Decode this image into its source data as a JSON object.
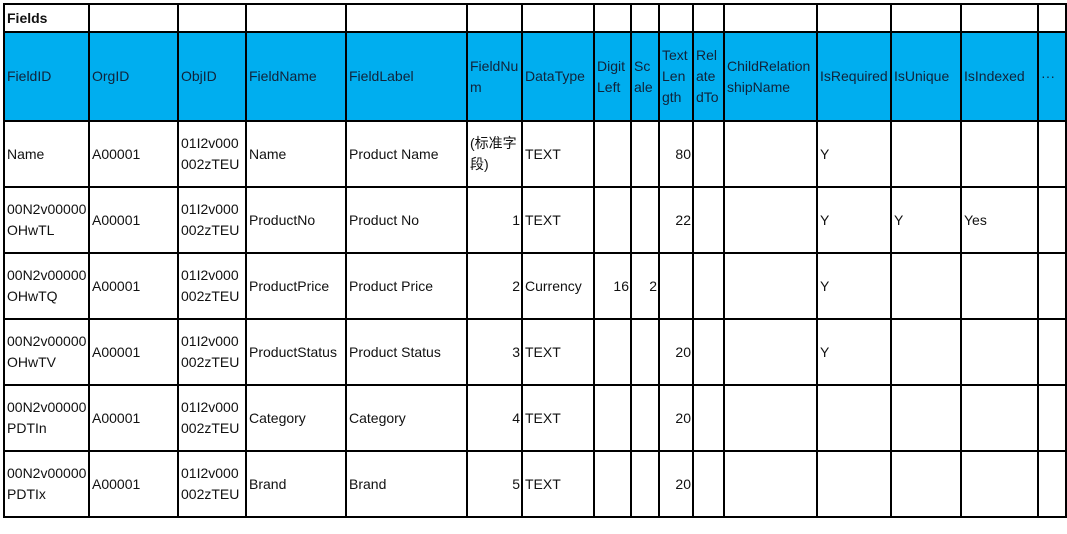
{
  "sheet": {
    "title": "Fields",
    "columns": [
      "FieldID",
      "OrgID",
      "ObjID",
      "FieldName",
      "FieldLabel",
      "FieldNum",
      "DataType",
      "DigitLeft",
      "Scale",
      "TextLength",
      "RelatedTo",
      "ChildRelationshipName",
      "IsRequired",
      "IsUnique",
      "IsIndexed",
      "···"
    ],
    "numeric_columns": [
      5,
      7,
      8,
      9
    ],
    "rows": [
      [
        "Name",
        "A00001",
        "01I2v000002zTEU",
        "Name",
        "Product Name",
        "(标准字段)",
        "TEXT",
        "",
        "",
        "80",
        "",
        "",
        "Y",
        "",
        "",
        ""
      ],
      [
        "00N2v00000OHwTL",
        "A00001",
        "01I2v000002zTEU",
        "ProductNo",
        "Product No",
        "1",
        "TEXT",
        "",
        "",
        "22",
        "",
        "",
        "Y",
        "Y",
        "Yes",
        ""
      ],
      [
        "00N2v00000OHwTQ",
        "A00001",
        "01I2v000002zTEU",
        "ProductPrice",
        "Product Price",
        "2",
        "Currency",
        "16",
        "2",
        "",
        "",
        "",
        "Y",
        "",
        "",
        ""
      ],
      [
        "00N2v00000OHwTV",
        "A00001",
        "01I2v000002zTEU",
        "ProductStatus",
        "Product Status",
        "3",
        "TEXT",
        "",
        "",
        "20",
        "",
        "",
        "Y",
        "",
        "",
        ""
      ],
      [
        "00N2v00000PDTIn",
        "A00001",
        "01I2v000002zTEU",
        "Category",
        "Category",
        "4",
        "TEXT",
        "",
        "",
        "20",
        "",
        "",
        "",
        "",
        "",
        ""
      ],
      [
        "00N2v00000PDTIx",
        "A00001",
        "01I2v000002zTEU",
        "Brand",
        "Brand",
        "5",
        "TEXT",
        "",
        "",
        "20",
        "",
        "",
        "",
        "",
        "",
        ""
      ]
    ]
  },
  "colors": {
    "header_bg": "#00aeef",
    "border": "#000000"
  }
}
